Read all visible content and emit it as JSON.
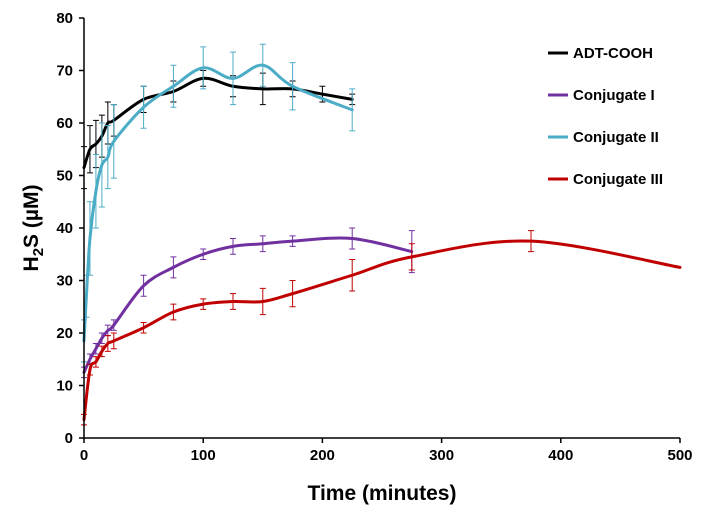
{
  "chart_data": {
    "type": "line",
    "xlabel": "Time (minutes)",
    "ylabel": {
      "prefix": "H",
      "sub": "2",
      "suffix": "S (µM)"
    },
    "xlim": [
      0,
      500
    ],
    "ylim": [
      0,
      80
    ],
    "x_ticks": [
      "0",
      "100",
      "200",
      "300",
      "400",
      "500"
    ],
    "y_ticks": [
      "0",
      "10",
      "20",
      "30",
      "40",
      "50",
      "60",
      "70",
      "80"
    ],
    "grid": false,
    "legend_position": "top-right",
    "series": [
      {
        "name": "ADT-COOH",
        "color": "#000000",
        "points": [
          {
            "x": 0,
            "y": 51.5,
            "err": 4
          },
          {
            "x": 5,
            "y": 55,
            "err": 4.5
          },
          {
            "x": 10,
            "y": 56,
            "err": 4.5
          },
          {
            "x": 15,
            "y": 57.5,
            "err": 4
          },
          {
            "x": 20,
            "y": 60,
            "err": 4
          },
          {
            "x": 25,
            "y": 60.5,
            "err": 3
          },
          {
            "x": 50,
            "y": 64.5,
            "err": 2.5
          },
          {
            "x": 75,
            "y": 66,
            "err": 2
          },
          {
            "x": 100,
            "y": 68.5,
            "err": 1.5
          },
          {
            "x": 125,
            "y": 67,
            "err": 2
          },
          {
            "x": 150,
            "y": 66.5,
            "err": 3
          },
          {
            "x": 175,
            "y": 66.5,
            "err": 1.5
          },
          {
            "x": 200,
            "y": 65.5,
            "err": 1.5
          },
          {
            "x": 225,
            "y": 64.5,
            "err": 1
          }
        ]
      },
      {
        "name": "Conjugate I",
        "color": "#7030a0",
        "points": [
          {
            "x": 0,
            "y": 12.5,
            "err": 1
          },
          {
            "x": 5,
            "y": 15,
            "err": 1
          },
          {
            "x": 10,
            "y": 17,
            "err": 1
          },
          {
            "x": 15,
            "y": 19,
            "err": 1
          },
          {
            "x": 20,
            "y": 20.5,
            "err": 1
          },
          {
            "x": 25,
            "y": 21.5,
            "err": 1
          },
          {
            "x": 50,
            "y": 29,
            "err": 2
          },
          {
            "x": 75,
            "y": 32.5,
            "err": 2
          },
          {
            "x": 100,
            "y": 35,
            "err": 1
          },
          {
            "x": 125,
            "y": 36.5,
            "err": 1.5
          },
          {
            "x": 150,
            "y": 37,
            "err": 1.5
          },
          {
            "x": 175,
            "y": 37.5,
            "err": 1
          },
          {
            "x": 225,
            "y": 38,
            "err": 2
          },
          {
            "x": 275,
            "y": 35.5,
            "err": 4
          }
        ]
      },
      {
        "name": "Conjugate II",
        "color": "#4bacc6",
        "points": [
          {
            "x": 0,
            "y": 18.5,
            "err": 4
          },
          {
            "x": 2,
            "y": 27,
            "err": 4
          },
          {
            "x": 5,
            "y": 38,
            "err": 7
          },
          {
            "x": 10,
            "y": 47,
            "err": 7
          },
          {
            "x": 15,
            "y": 52,
            "err": 8
          },
          {
            "x": 20,
            "y": 53.5,
            "err": 6
          },
          {
            "x": 25,
            "y": 56.5,
            "err": 7
          },
          {
            "x": 50,
            "y": 63,
            "err": 4
          },
          {
            "x": 75,
            "y": 67,
            "err": 4
          },
          {
            "x": 100,
            "y": 70.5,
            "err": 4
          },
          {
            "x": 125,
            "y": 68.5,
            "err": 5
          },
          {
            "x": 150,
            "y": 71,
            "err": 4
          },
          {
            "x": 175,
            "y": 67,
            "err": 4.5
          },
          {
            "x": 225,
            "y": 62.5,
            "err": 4
          }
        ]
      },
      {
        "name": "Conjugate III",
        "color": "#c00000",
        "points": [
          {
            "x": 0,
            "y": 3.5,
            "err": 1
          },
          {
            "x": 5,
            "y": 13,
            "err": 1
          },
          {
            "x": 10,
            "y": 14.5,
            "err": 1
          },
          {
            "x": 15,
            "y": 16.5,
            "err": 1
          },
          {
            "x": 20,
            "y": 18,
            "err": 1.5
          },
          {
            "x": 25,
            "y": 18.5,
            "err": 1.5
          },
          {
            "x": 50,
            "y": 21,
            "err": 1
          },
          {
            "x": 75,
            "y": 24,
            "err": 1.5
          },
          {
            "x": 100,
            "y": 25.5,
            "err": 1
          },
          {
            "x": 125,
            "y": 26,
            "err": 1.5
          },
          {
            "x": 150,
            "y": 26,
            "err": 2.5
          },
          {
            "x": 175,
            "y": 27.5,
            "err": 2.5
          },
          {
            "x": 225,
            "y": 31,
            "err": 3
          },
          {
            "x": 275,
            "y": 34.5,
            "err": 2.5
          },
          {
            "x": 375,
            "y": 37.5,
            "err": 2
          },
          {
            "x": 500,
            "y": 32.5,
            "err": 0
          }
        ]
      }
    ]
  }
}
